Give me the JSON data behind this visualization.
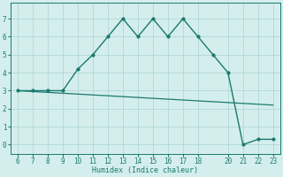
{
  "x": [
    6,
    7,
    8,
    9,
    10,
    11,
    12,
    13,
    14,
    15,
    16,
    17,
    18,
    19,
    20,
    21,
    22,
    23
  ],
  "y": [
    3,
    3,
    3,
    3,
    4.2,
    5,
    6,
    7,
    6,
    7,
    6,
    7,
    6,
    5,
    4,
    0,
    0.3,
    0.3
  ],
  "trend_x": [
    6,
    23
  ],
  "trend_y": [
    3.0,
    2.2
  ],
  "line_color": "#1a7a6e",
  "bg_color": "#d4eeed",
  "grid_color": "#b0d8d4",
  "xlabel": "Humidex (Indice chaleur)",
  "xlim": [
    5.5,
    23.5
  ],
  "ylim": [
    -0.5,
    7.9
  ],
  "xticks": [
    6,
    7,
    8,
    9,
    10,
    11,
    12,
    13,
    14,
    15,
    16,
    17,
    18,
    20,
    21,
    22,
    23
  ],
  "yticks": [
    0,
    1,
    2,
    3,
    4,
    5,
    6,
    7
  ]
}
